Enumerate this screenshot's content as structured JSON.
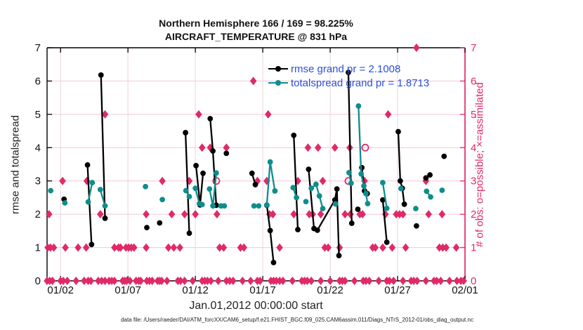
{
  "footer": {
    "text": "data file: /Users/raeder/DAI/ATM_forcXX/CAM6_setup/f.e21.FHIST_BGC.f09_025.CAM6assim.011/Diags_NTrS_2012-01/obs_diag_output.nc"
  },
  "legend_text_color": "#2b4fdb",
  "chart_data": {
    "type": "line",
    "title_line1": "Northern Hemisphere 166 / 169 = 98.225%",
    "title_line2": "AIRCRAFT_TEMPERATURE @ 831 hPa",
    "xlabel": "Jan.01,2012 00:00:00 start",
    "ylabel_left": "rmse and totalspread",
    "ylabel_right": "# of obs: o=possible; ×=assimilated",
    "x_domain": [
      1,
      32
    ],
    "y_domain": [
      0,
      7
    ],
    "grid": "on",
    "legend_position": "top-right-inside",
    "x_ticks": [
      {
        "day": 2,
        "label": "01/02"
      },
      {
        "day": 7,
        "label": "01/07"
      },
      {
        "day": 12,
        "label": "01/12"
      },
      {
        "day": 17,
        "label": "01/17"
      },
      {
        "day": 22,
        "label": "01/22"
      },
      {
        "day": 27,
        "label": "01/27"
      },
      {
        "day": 32,
        "label": "02/01"
      }
    ],
    "y_ticks": [
      0,
      1,
      2,
      3,
      4,
      5,
      6,
      7
    ],
    "series": [
      {
        "id": "rmse",
        "name": "rmse grand pr = 2.1008",
        "color": "#000000",
        "segments": [
          [
            [
              2.26,
              2.45
            ]
          ],
          [
            [
              4.0,
              3.48
            ],
            [
              4.3,
              1.09
            ]
          ],
          [
            [
              5.0,
              6.18
            ],
            [
              5.3,
              1.88
            ]
          ],
          [
            [
              8.4,
              1.6
            ]
          ],
          [
            [
              9.35,
              1.74
            ]
          ],
          [
            [
              11.27,
              4.45
            ],
            [
              11.55,
              1.43
            ]
          ],
          [
            [
              12.05,
              3.46
            ],
            [
              12.35,
              2.28
            ],
            [
              12.57,
              3.23
            ]
          ],
          [
            [
              13.1,
              4.87
            ],
            [
              13.3,
              3.9
            ],
            [
              13.55,
              2.27
            ]
          ],
          [
            [
              14.3,
              3.83
            ]
          ],
          [
            [
              16.2,
              3.23
            ],
            [
              16.45,
              2.89
            ]
          ],
          [
            [
              17.3,
              2.27
            ],
            [
              17.55,
              1.51
            ],
            [
              17.8,
              0.55
            ]
          ],
          [
            [
              19.3,
              4.37
            ],
            [
              19.6,
              1.54
            ]
          ],
          [
            [
              20.4,
              3.35
            ],
            [
              20.8,
              1.57
            ],
            [
              21.05,
              1.52
            ],
            [
              22.35,
              2.43
            ],
            [
              22.5,
              2.76
            ],
            [
              22.65,
              0.76
            ]
          ],
          [
            [
              23.35,
              6.26
            ],
            [
              23.6,
              1.73
            ]
          ],
          [
            [
              24.05,
              2.15
            ]
          ],
          [
            [
              24.35,
              3.4
            ],
            [
              24.55,
              2.7
            ],
            [
              24.75,
              2.62
            ]
          ],
          [
            [
              25.9,
              2.43
            ],
            [
              26.2,
              1.16
            ]
          ],
          [
            [
              27.05,
              4.48
            ],
            [
              27.2,
              3.0
            ],
            [
              27.35,
              2.78
            ],
            [
              27.5,
              2.3
            ]
          ],
          [
            [
              28.4,
              1.65
            ]
          ],
          [
            [
              29.1,
              3.09
            ],
            [
              29.4,
              3.18
            ]
          ],
          [
            [
              30.45,
              3.74
            ]
          ]
        ]
      },
      {
        "id": "totalspread",
        "name": "totalspread grand pr = 1.8713",
        "color": "#0f8d8d",
        "segments": [
          [
            [
              1.27,
              2.71
            ]
          ],
          [
            [
              2.32,
              2.34
            ]
          ],
          [
            [
              4.05,
              2.37
            ],
            [
              4.35,
              2.95
            ]
          ],
          [
            [
              4.95,
              2.74
            ],
            [
              5.3,
              2.25
            ]
          ],
          [
            [
              8.3,
              2.83
            ]
          ],
          [
            [
              9.55,
              2.44
            ]
          ],
          [
            [
              11.3,
              2.71
            ],
            [
              11.55,
              2.53
            ]
          ],
          [
            [
              12.0,
              2.78
            ],
            [
              12.3,
              2.32
            ],
            [
              12.5,
              2.29
            ]
          ],
          [
            [
              13.05,
              2.76
            ],
            [
              13.3,
              2.25
            ],
            [
              13.55,
              3.24
            ]
          ],
          [
            [
              13.9,
              2.25
            ],
            [
              14.15,
              2.25
            ]
          ],
          [
            [
              16.35,
              2.25
            ],
            [
              16.7,
              2.25
            ]
          ],
          [
            [
              17.3,
              2.28
            ],
            [
              17.55,
              3.57
            ],
            [
              17.9,
              2.7
            ]
          ],
          [
            [
              19.25,
              2.8
            ],
            [
              19.5,
              2.5
            ]
          ],
          [
            [
              20.2,
              2.38
            ]
          ],
          [
            [
              20.6,
              2.78
            ],
            [
              20.95,
              2.9
            ],
            [
              21.2,
              2.55
            ],
            [
              21.45,
              2.17
            ]
          ],
          [
            [
              22.4,
              2.31
            ]
          ],
          [
            [
              23.4,
              3.25
            ],
            [
              23.55,
              2.93
            ]
          ],
          [
            [
              24.1,
              5.25
            ],
            [
              24.3,
              3.21
            ],
            [
              24.5,
              2.85
            ],
            [
              24.65,
              2.62
            ],
            [
              24.78,
              2.32
            ]
          ],
          [
            [
              25.9,
              2.95
            ],
            [
              26.2,
              2.18
            ]
          ],
          [
            [
              27.25,
              2.77
            ]
          ],
          [
            [
              28.35,
              2.17
            ]
          ],
          [
            [
              29.15,
              2.69
            ],
            [
              29.45,
              2.52
            ]
          ],
          [
            [
              30.3,
              2.72
            ]
          ]
        ]
      }
    ],
    "obs_markers": {
      "color": "#e02a68",
      "assimilated": [
        [
          28.4,
          7
        ],
        [
          16.3,
          6
        ],
        [
          5.3,
          5
        ],
        [
          12.25,
          5
        ],
        [
          17.4,
          5
        ],
        [
          26.3,
          5
        ],
        [
          12.5,
          4
        ],
        [
          13.1,
          4
        ],
        [
          14.3,
          4
        ],
        [
          20.35,
          4
        ],
        [
          21.1,
          4
        ],
        [
          22.35,
          4
        ],
        [
          23.45,
          4
        ],
        [
          2.15,
          3
        ],
        [
          3.95,
          3
        ],
        [
          9.55,
          3
        ],
        [
          11.55,
          3
        ],
        [
          16.6,
          3
        ],
        [
          17.3,
          3
        ],
        [
          19.6,
          3
        ],
        [
          21.45,
          3
        ],
        [
          24.55,
          3
        ],
        [
          29.1,
          3
        ],
        [
          1.15,
          2
        ],
        [
          4.95,
          2
        ],
        [
          8.35,
          2
        ],
        [
          10.25,
          2
        ],
        [
          11.2,
          2
        ],
        [
          12.0,
          2
        ],
        [
          13.6,
          2
        ],
        [
          17.5,
          2
        ],
        [
          17.75,
          2
        ],
        [
          19.3,
          2
        ],
        [
          20.45,
          2
        ],
        [
          20.7,
          2
        ],
        [
          21.3,
          2
        ],
        [
          23.1,
          2
        ],
        [
          23.5,
          2
        ],
        [
          24.2,
          2
        ],
        [
          24.4,
          2
        ],
        [
          26.1,
          2
        ],
        [
          26.9,
          2
        ],
        [
          27.15,
          2
        ],
        [
          27.4,
          2
        ],
        [
          29.3,
          2
        ],
        [
          30.3,
          2
        ],
        [
          1.05,
          1
        ],
        [
          1.25,
          1
        ],
        [
          1.5,
          1
        ],
        [
          2.36,
          1
        ],
        [
          3.3,
          1
        ],
        [
          3.9,
          1
        ],
        [
          6.0,
          1
        ],
        [
          6.3,
          1
        ],
        [
          6.45,
          1
        ],
        [
          6.85,
          1
        ],
        [
          7.05,
          1
        ],
        [
          7.25,
          1
        ],
        [
          7.45,
          1
        ],
        [
          8.35,
          1
        ],
        [
          10.0,
          1
        ],
        [
          10.4,
          1
        ],
        [
          10.85,
          1
        ],
        [
          13.8,
          1
        ],
        [
          14.1,
          1
        ],
        [
          15.35,
          1
        ],
        [
          15.6,
          1
        ],
        [
          18.25,
          1
        ],
        [
          21.6,
          1
        ],
        [
          21.85,
          1
        ],
        [
          22.7,
          1
        ],
        [
          25.15,
          1
        ],
        [
          25.35,
          1
        ],
        [
          25.9,
          1
        ],
        [
          26.6,
          1
        ],
        [
          27.6,
          1
        ],
        [
          30.1,
          1
        ],
        [
          30.35,
          1
        ],
        [
          30.6,
          1
        ],
        [
          31.35,
          1
        ],
        [
          1.0,
          0
        ],
        [
          1.2,
          0
        ],
        [
          1.4,
          0
        ],
        [
          2.0,
          0
        ],
        [
          2.2,
          0
        ],
        [
          2.5,
          0
        ],
        [
          3.15,
          0
        ],
        [
          3.75,
          0
        ],
        [
          4.05,
          0
        ],
        [
          4.25,
          0
        ],
        [
          4.8,
          0
        ],
        [
          5.05,
          0
        ],
        [
          5.3,
          0
        ],
        [
          5.6,
          0
        ],
        [
          5.8,
          0
        ],
        [
          6.0,
          0
        ],
        [
          6.6,
          0
        ],
        [
          6.75,
          0
        ],
        [
          6.9,
          0
        ],
        [
          7.15,
          0
        ],
        [
          7.6,
          0
        ],
        [
          7.8,
          0
        ],
        [
          7.95,
          0
        ],
        [
          8.4,
          0
        ],
        [
          8.6,
          0
        ],
        [
          8.8,
          0
        ],
        [
          9.2,
          0
        ],
        [
          9.35,
          0
        ],
        [
          9.5,
          0
        ],
        [
          9.9,
          0
        ],
        [
          10.7,
          0
        ],
        [
          10.9,
          0
        ],
        [
          11.2,
          0
        ],
        [
          11.8,
          0
        ],
        [
          12.5,
          0
        ],
        [
          12.7,
          0
        ],
        [
          12.9,
          0
        ],
        [
          13.15,
          0
        ],
        [
          13.7,
          0
        ],
        [
          14.3,
          0
        ],
        [
          14.55,
          0
        ],
        [
          14.8,
          0
        ],
        [
          15.5,
          0
        ],
        [
          16.1,
          0
        ],
        [
          16.6,
          0
        ],
        [
          16.8,
          0
        ],
        [
          17.6,
          0
        ],
        [
          17.8,
          0
        ],
        [
          18.0,
          0
        ],
        [
          18.25,
          0
        ],
        [
          18.5,
          0
        ],
        [
          19.2,
          0
        ],
        [
          19.9,
          0
        ],
        [
          20.1,
          0
        ],
        [
          20.3,
          0
        ],
        [
          20.6,
          0
        ],
        [
          21.3,
          0
        ],
        [
          22.0,
          0
        ],
        [
          22.7,
          0
        ],
        [
          22.9,
          0
        ],
        [
          23.1,
          0
        ],
        [
          23.8,
          0
        ],
        [
          24.45,
          0
        ],
        [
          24.65,
          0
        ],
        [
          24.9,
          0
        ],
        [
          25.6,
          0
        ],
        [
          26.2,
          0
        ],
        [
          26.4,
          0
        ],
        [
          26.7,
          0
        ],
        [
          27.4,
          0
        ],
        [
          28.0,
          0
        ],
        [
          28.2,
          0
        ],
        [
          28.45,
          0
        ],
        [
          29.1,
          0
        ],
        [
          29.7,
          0
        ],
        [
          29.9,
          0
        ],
        [
          30.2,
          0
        ],
        [
          30.85,
          0
        ],
        [
          31.4,
          0
        ],
        [
          31.7,
          0
        ],
        [
          31.9,
          0
        ]
      ],
      "possible": [
        [
          13.55,
          3
        ],
        [
          23.35,
          3
        ],
        [
          24.6,
          4
        ]
      ]
    }
  }
}
